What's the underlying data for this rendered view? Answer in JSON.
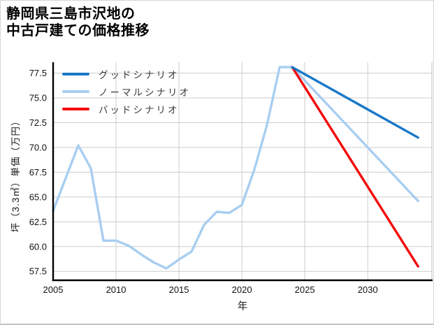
{
  "header": {
    "title_line1": "静岡県三島市沢地の",
    "title_line2": "中古戸建ての価格推移"
  },
  "chart_data": {
    "type": "line",
    "title": "静岡県三島市沢地の中古戸建ての価格推移",
    "xlabel": "年",
    "ylabel": "坪（3.3㎡）単価（万円）",
    "x_ticks": [
      "2005",
      "2010",
      "2015",
      "2020",
      "2025",
      "2030"
    ],
    "y_ticks": [
      "57.5",
      "60.0",
      "62.5",
      "65.0",
      "67.5",
      "70.0",
      "72.5",
      "75.0",
      "77.5"
    ],
    "xlim": [
      2005,
      2035.1
    ],
    "ylim": [
      56.6,
      78.6
    ],
    "grid": true,
    "grid_color": "#cccccc",
    "spine_color": "#000000",
    "legend_position": "upper-left",
    "series": [
      {
        "name": "グッドシナリオ",
        "color": "#1878c8",
        "x": [
          2024,
          2034
        ],
        "values": [
          78.1,
          71.0
        ]
      },
      {
        "name": "ノーマルシナリオ",
        "color": "#a8cef1",
        "x": [
          2005,
          2006,
          2007,
          2008,
          2009,
          2010,
          2011,
          2012,
          2013,
          2014,
          2015,
          2016,
          2017,
          2018,
          2019,
          2020,
          2021,
          2022,
          2023,
          2024,
          2034
        ],
        "values": [
          63.6,
          66.9,
          70.2,
          67.9,
          60.6,
          60.6,
          60.1,
          59.2,
          58.4,
          57.8,
          58.7,
          59.5,
          62.2,
          63.5,
          63.4,
          64.2,
          67.8,
          72.3,
          78.1,
          78.1,
          64.6
        ]
      },
      {
        "name": "バッドシナリオ",
        "color": "#f40a0a",
        "x": [
          2024,
          2034
        ],
        "values": [
          78.1,
          58.0
        ]
      }
    ]
  }
}
